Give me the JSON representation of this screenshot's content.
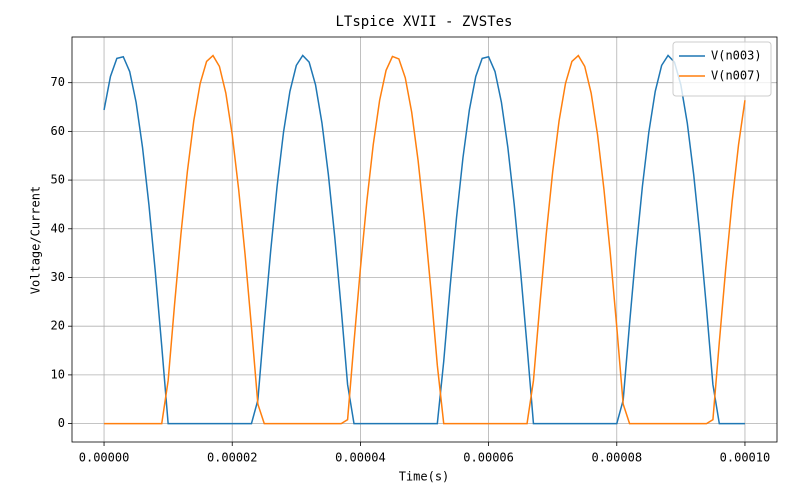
{
  "chart_data": {
    "type": "line",
    "title": "LTspice XVII - ZVSTes",
    "xlabel": "Time(s)",
    "ylabel": "Voltage/Current",
    "x": [
      0,
      1e-06,
      2e-06,
      3e-06,
      4e-06,
      5e-06,
      6e-06,
      7e-06,
      8e-06,
      9e-06,
      1e-05,
      1.1e-05,
      1.2e-05,
      1.3e-05,
      1.4e-05,
      1.5e-05,
      1.6e-05,
      1.7e-05,
      1.8e-05,
      1.9e-05,
      2e-05,
      2.1e-05,
      2.2e-05,
      2.3e-05,
      2.4e-05,
      2.5e-05,
      2.6e-05,
      2.7e-05,
      2.8e-05,
      2.9e-05,
      3e-05,
      3.1e-05,
      3.2e-05,
      3.3e-05,
      3.4e-05,
      3.5e-05,
      3.6e-05,
      3.7e-05,
      3.8e-05,
      3.9e-05,
      4e-05,
      4.1e-05,
      4.2e-05,
      4.3e-05,
      4.4e-05,
      4.5e-05,
      4.6e-05,
      4.7e-05,
      4.8e-05,
      4.9e-05,
      5e-05,
      5.1e-05,
      5.2e-05,
      5.3e-05,
      5.4e-05,
      5.5e-05,
      5.6e-05,
      5.7e-05,
      5.8e-05,
      5.9e-05,
      6e-05,
      6.1e-05,
      6.2e-05,
      6.3e-05,
      6.4e-05,
      6.5e-05,
      6.6e-05,
      6.7e-05,
      6.8e-05,
      6.9e-05,
      7e-05,
      7.1e-05,
      7.2e-05,
      7.3e-05,
      7.4e-05,
      7.5e-05,
      7.6e-05,
      7.7e-05,
      7.8e-05,
      7.9e-05,
      8e-05,
      8.1e-05,
      8.2e-05,
      8.3e-05,
      8.4e-05,
      8.5e-05,
      8.6e-05,
      8.7e-05,
      8.8e-05,
      8.9e-05,
      9e-05,
      9.1e-05,
      9.2e-05,
      9.3e-05,
      9.4e-05,
      9.5e-05,
      9.6e-05,
      9.7e-05,
      9.8e-05,
      9.9e-05,
      0.0001
    ],
    "series": [
      {
        "name": "V(n003)",
        "color": "#1f77b4",
        "values": [
          64.39,
          71.28,
          74.99,
          75.33,
          72.29,
          65.99,
          56.75,
          44.96,
          31.15,
          15.93,
          0,
          0,
          0,
          0,
          0,
          0,
          0,
          0,
          0,
          0,
          0,
          0,
          0,
          0,
          4.81,
          20.6,
          35.46,
          48.73,
          59.81,
          68.21,
          73.55,
          75.58,
          74.22,
          69.53,
          61.73,
          51.15,
          38.28,
          23.67,
          8.01,
          0,
          0,
          0,
          0,
          0,
          0,
          0,
          0,
          0,
          0,
          0,
          0,
          0,
          0,
          12.78,
          28.18,
          42.33,
          54.58,
          64.39,
          71.28,
          74.99,
          75.33,
          72.29,
          65.99,
          56.75,
          44.96,
          31.15,
          15.93,
          0,
          0,
          0,
          0,
          0,
          0,
          0,
          0,
          0,
          0,
          0,
          0,
          0,
          0,
          4.81,
          20.6,
          35.46,
          48.73,
          59.81,
          68.21,
          73.55,
          75.58,
          74.22,
          69.53,
          61.73,
          51.15,
          38.28,
          23.67,
          8.01,
          0,
          0,
          0,
          0,
          0
        ]
      },
      {
        "name": "V(n007)",
        "color": "#ff7f0e",
        "values": [
          0,
          0,
          0,
          0,
          0,
          0,
          0,
          0,
          0,
          0,
          8.81,
          24.43,
          38.95,
          51.73,
          62.18,
          69.85,
          74.37,
          75.56,
          73.35,
          67.87,
          59.32,
          48.11,
          34.76,
          19.82,
          4.01,
          0,
          0,
          0,
          0,
          0,
          0,
          0,
          0,
          0,
          0,
          0,
          0,
          0,
          0.8,
          16.71,
          31.87,
          45.59,
          57.27,
          66.39,
          72.52,
          75.39,
          74.88,
          71.01,
          63.96,
          54.02,
          41.66,
          27.44,
          11.98,
          0,
          0,
          0,
          0,
          0,
          0,
          0,
          0,
          0,
          0,
          0,
          0,
          0,
          0,
          8.81,
          24.43,
          38.95,
          51.73,
          62.18,
          69.85,
          74.37,
          75.56,
          73.35,
          67.87,
          59.32,
          48.11,
          34.76,
          19.82,
          4.01,
          0,
          0,
          0,
          0,
          0,
          0,
          0,
          0,
          0,
          0,
          0,
          0,
          0,
          0.8,
          16.71,
          31.87,
          45.59,
          57.27,
          66.39
        ]
      }
    ],
    "xlim": [
      -5e-06,
      0.000105
    ],
    "xticks": [
      {
        "value": 0,
        "label": "0.00000"
      },
      {
        "value": 2e-05,
        "label": "0.00002"
      },
      {
        "value": 4e-05,
        "label": "0.00004"
      },
      {
        "value": 6e-05,
        "label": "0.00006"
      },
      {
        "value": 8e-05,
        "label": "0.00008"
      },
      {
        "value": 0.0001,
        "label": "0.00010"
      }
    ],
    "ylim": [
      -3.78,
      79.38
    ],
    "yticks": [
      0,
      10,
      20,
      30,
      40,
      50,
      60,
      70
    ],
    "grid": true,
    "legend": "upper right"
  }
}
